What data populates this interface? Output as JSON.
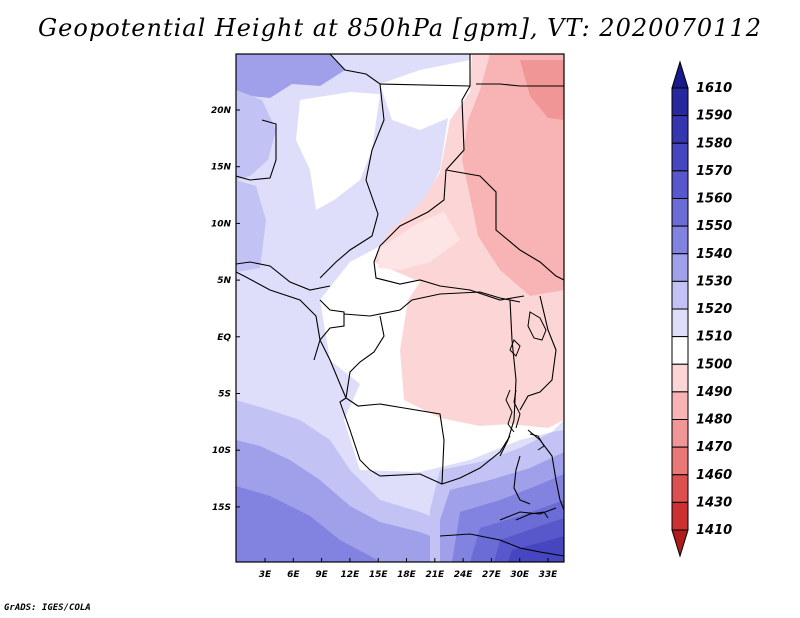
{
  "title": "Geopotential Height at 850hPa [gpm], VT: 2020070112",
  "credit": "GrADS: IGES/COLA",
  "map": {
    "lat_labels": [
      "20N",
      "15N",
      "10N",
      "5N",
      "EQ",
      "5S",
      "10S",
      "15S"
    ],
    "lon_labels": [
      "3E",
      "6E",
      "9E",
      "12E",
      "15E",
      "18E",
      "21E",
      "24E",
      "27E",
      "30E",
      "33E"
    ]
  },
  "colorbar": {
    "levels": [
      "1610",
      "1590",
      "1580",
      "1570",
      "1560",
      "1550",
      "1540",
      "1530",
      "1520",
      "1510",
      "1500",
      "1490",
      "1480",
      "1470",
      "1460",
      "1430",
      "1410"
    ],
    "colors": [
      "#1a1a8c",
      "#28289e",
      "#3636b0",
      "#4646c0",
      "#5858cc",
      "#6c6cd6",
      "#8282e0",
      "#a0a0ea",
      "#c2c2f4",
      "#dedefa",
      "#ffffff",
      "#fcd6d6",
      "#f8b4b4",
      "#f09696",
      "#e87878",
      "#dc5050",
      "#cc3030",
      "#b01c1c"
    ]
  }
}
